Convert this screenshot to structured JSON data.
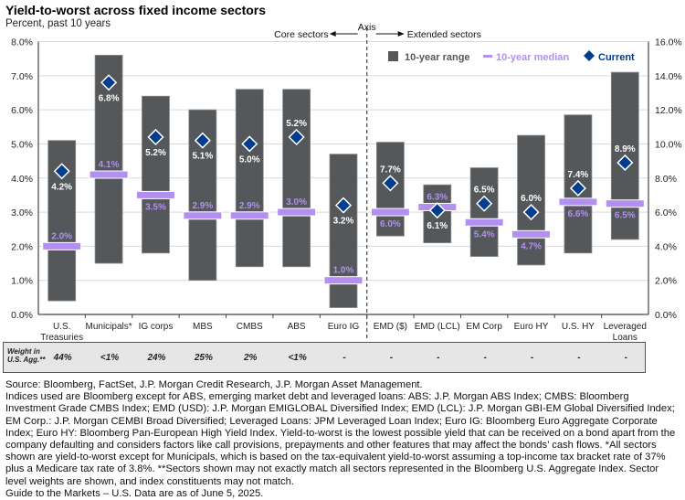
{
  "header": {
    "title": "Yield-to-worst across fixed income sectors",
    "subtitle": "Percent, past 10 years"
  },
  "chart_data": {
    "type": "range-bar",
    "title": "Yield-to-worst across fixed income sectors",
    "subtitle": "Percent, past 10 years",
    "categories": [
      "U.S. Treasuries",
      "Municipals*",
      "IG corps",
      "MBS",
      "CMBS",
      "ABS",
      "Euro IG",
      "EMD ($)",
      "EMD (LCL)",
      "EM Corp",
      "Euro HY",
      "U.S. HY",
      "Leveraged Loans"
    ],
    "category_lines": [
      [
        "U.S.",
        "Treasuries"
      ],
      [
        "Municipals*"
      ],
      [
        "IG corps"
      ],
      [
        "MBS"
      ],
      [
        "CMBS"
      ],
      [
        "ABS"
      ],
      [
        "Euro IG"
      ],
      [
        "EMD ($)"
      ],
      [
        "EMD (LCL)"
      ],
      [
        "EM Corp"
      ],
      [
        "Euro HY"
      ],
      [
        "U.S. HY"
      ],
      [
        "Leveraged",
        "Loans"
      ]
    ],
    "axis": [
      "left",
      "left",
      "left",
      "left",
      "left",
      "left",
      "left",
      "right",
      "right",
      "right",
      "right",
      "right",
      "right"
    ],
    "series": [
      {
        "name": "10-year range",
        "low": [
          0.4,
          1.5,
          1.8,
          1.0,
          1.4,
          1.4,
          0.2,
          4.6,
          4.2,
          3.4,
          2.9,
          3.6,
          4.4
        ],
        "high": [
          5.1,
          7.6,
          6.4,
          6.0,
          6.6,
          6.6,
          4.7,
          10.1,
          7.6,
          8.6,
          10.5,
          11.7,
          14.2
        ]
      },
      {
        "name": "10-year median",
        "values": [
          2.0,
          4.1,
          3.5,
          2.9,
          2.9,
          3.0,
          1.0,
          6.0,
          6.3,
          5.4,
          4.7,
          6.6,
          6.5
        ]
      },
      {
        "name": "Current",
        "values": [
          4.2,
          6.8,
          5.2,
          5.1,
          5.0,
          5.2,
          3.2,
          7.7,
          6.1,
          6.5,
          6.0,
          7.4,
          8.9
        ]
      }
    ],
    "median_labels": [
      "2.0%",
      "4.1%",
      "3.5%",
      "2.9%",
      "2.9%",
      "3.0%",
      "1.0%",
      "6.0%",
      "6.3%",
      "5.4%",
      "4.7%",
      "6.6%",
      "6.5%"
    ],
    "current_labels": [
      "4.2%",
      "6.8%",
      "5.2%",
      "5.1%",
      "5.0%",
      "5.2%",
      "3.2%",
      "7.7%",
      "6.1%",
      "6.5%",
      "6.0%",
      "7.4%",
      "8.9%"
    ],
    "median_label_pos": [
      "above",
      "above",
      "below",
      "above",
      "above",
      "above",
      "above",
      "below",
      "above",
      "below",
      "below",
      "below",
      "below"
    ],
    "current_label_pos": [
      "below",
      "below",
      "below",
      "below",
      "below",
      "above",
      "below",
      "above",
      "below",
      "above",
      "above",
      "above",
      "above"
    ],
    "left_axis": {
      "ylim": [
        0,
        8
      ],
      "ticks": [
        "0.0%",
        "1.0%",
        "2.0%",
        "3.0%",
        "4.0%",
        "5.0%",
        "6.0%",
        "7.0%",
        "8.0%"
      ]
    },
    "right_axis": {
      "ylim": [
        0,
        16
      ],
      "ticks": [
        "0.0%",
        "2.0%",
        "4.0%",
        "6.0%",
        "8.0%",
        "10.0%",
        "12.0%",
        "14.0%",
        "16.0%"
      ]
    },
    "grid": true,
    "legend": {
      "position": "top-right",
      "items": [
        "10-year range",
        "10-year median",
        "Current"
      ]
    },
    "annotations": {
      "core": "Core sectors",
      "axis": "Axis",
      "extended": "Extended sectors"
    },
    "colors": {
      "range": "#54585a",
      "median": "#b28ff0",
      "current": "#003d8f",
      "current_label": "#ffffff",
      "median_label": "#b28ff0"
    }
  },
  "weights": {
    "label_line1": "Weight in",
    "label_line2": "U.S. Agg.**",
    "values": [
      "44%",
      "<1%",
      "24%",
      "25%",
      "2%",
      "<1%",
      "-",
      "-",
      "-",
      "-",
      "-",
      "-",
      "-"
    ]
  },
  "notes": [
    "Source: Bloomberg, FactSet, J.P. Morgan Credit Research, J.P. Morgan Asset Management.",
    "Indices used are Bloomberg except for ABS, emerging market debt and leveraged loans: ABS: J.P. Morgan ABS Index; CMBS: Bloomberg Investment Grade CMBS Index; EMD (USD): J.P. Morgan EMIGLOBAL Diversified Index; EMD (LCL): J.P. Morgan GBI-EM Global Diversified Index; EM Corp.: J.P. Morgan CEMBI Broad Diversified; Leveraged Loans: JPM Leveraged Loan Index; Euro IG: Bloomberg Euro Aggregate Corporate Index; Euro HY: Bloomberg Pan-European High Yield Index. Yield-to-worst is the lowest possible yield that can be received on a bond apart from the company defaulting and considers factors like call provisions, prepayments and other features that may affect the bonds’ cash flows. *All sectors shown are yield-to-worst except for Municipals, which is based on the tax-equivalent yield-to-worst assuming a top-income tax bracket rate of 37% plus a Medicare tax rate of 3.8%. **Sectors shown may not exactly match all sectors represented in the Bloomberg U.S. Aggregate Index. Sector level weights are shown, and index constituents may not match.",
    "Guide to the Markets – U.S. Data are as of June 5, 2025."
  ]
}
